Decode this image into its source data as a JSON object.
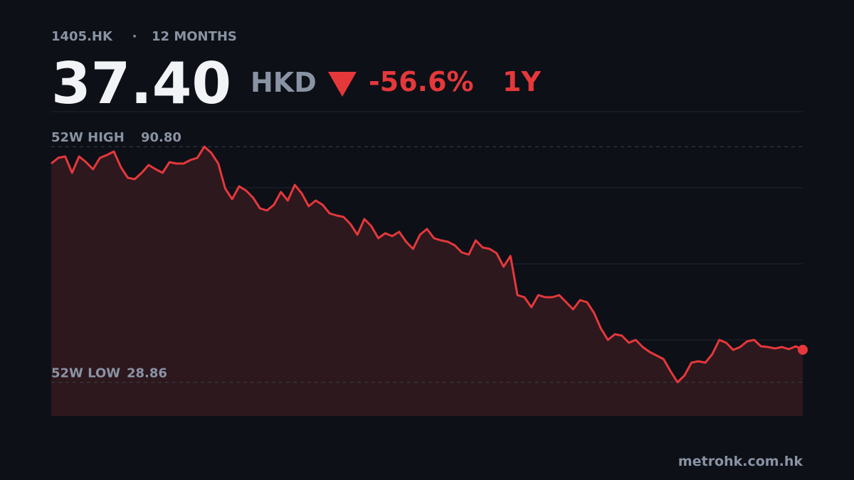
{
  "chart_data": {
    "type": "line",
    "ticker": "1405.HK",
    "separator": "·",
    "period": "12 MONTHS",
    "price": "37.40",
    "currency": "HKD",
    "change": "-56.6%",
    "range": "1Y",
    "source": "metrohk.com.hk",
    "high": {
      "label": "52W HIGH",
      "value": 90.8,
      "value_label": "90.80"
    },
    "low": {
      "label": "52W LOW",
      "value": 28.86,
      "value_label": "28.86"
    },
    "color": "#e5383b",
    "area_color": "#2d181e",
    "ylim": [
      20,
      100
    ],
    "yticks": [
      40,
      60,
      80
    ],
    "grid": true,
    "values": [
      86.36,
      87.85,
      88.22,
      83.93,
      88.22,
      86.73,
      84.86,
      87.85,
      88.6,
      89.53,
      85.42,
      82.62,
      82.24,
      83.93,
      85.98,
      84.86,
      83.93,
      86.73,
      86.36,
      86.36,
      87.29,
      87.85,
      90.8,
      89.16,
      86.36,
      79.81,
      77.01,
      80.37,
      79.25,
      77.38,
      74.58,
      74.02,
      75.51,
      78.88,
      76.64,
      80.75,
      78.5,
      75.14,
      76.64,
      75.51,
      73.27,
      72.71,
      72.34,
      70.47,
      67.66,
      71.78,
      69.91,
      66.73,
      68.04,
      67.29,
      68.41,
      65.79,
      63.93,
      67.66,
      69.16,
      66.73,
      66.17,
      65.79,
      64.86,
      62.99,
      62.43,
      66.17,
      64.3,
      63.93,
      62.8,
      59.25,
      62.06,
      51.78,
      51.21,
      48.6,
      51.78,
      51.21,
      51.21,
      51.78,
      49.91,
      48.04,
      50.47,
      49.91,
      47.1,
      42.99,
      40,
      41.5,
      41.12,
      39.25,
      40,
      38.13,
      36.82,
      35.89,
      34.95,
      31.78,
      28.86,
      30.65,
      34.02,
      34.39,
      34.02,
      36.26,
      40,
      39.25,
      37.38,
      38.13,
      39.63,
      40,
      38.32,
      38.13,
      37.76,
      38.13,
      37.57,
      38.32,
      37.4
    ]
  }
}
